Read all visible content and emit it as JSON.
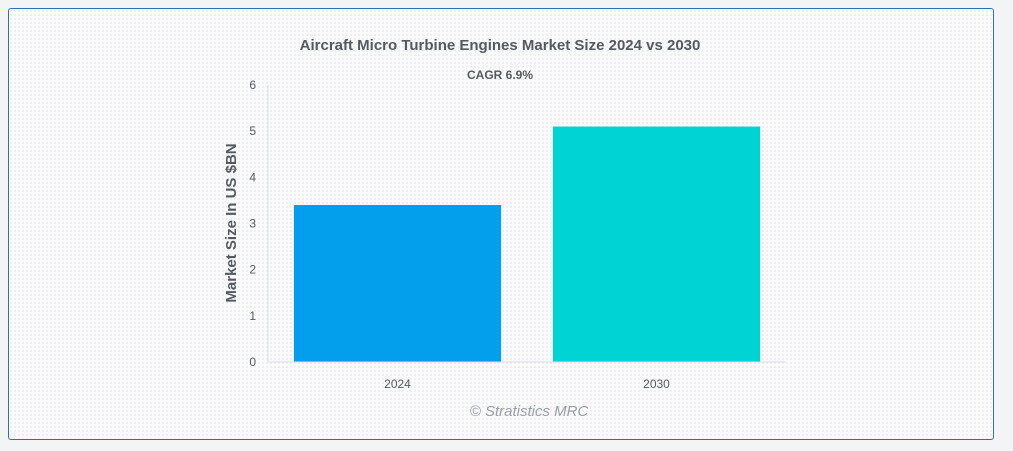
{
  "chart_data": {
    "type": "bar",
    "title": "Aircraft Micro Turbine Engines Market Size 2024 vs 2030",
    "subtitle": "CAGR 6.9%",
    "xlabel": "",
    "ylabel": "Market Size In US $BN",
    "categories": [
      "2024",
      "2030"
    ],
    "values": [
      3.4,
      5.1
    ],
    "colors": [
      "#039fed",
      "#00d3d3"
    ],
    "ylim": [
      0,
      6
    ],
    "yticks": [
      0,
      1,
      2,
      3,
      4,
      5,
      6
    ],
    "grid": false,
    "legend": "none"
  },
  "footer": {
    "credit": "© Stratistics MRC"
  }
}
